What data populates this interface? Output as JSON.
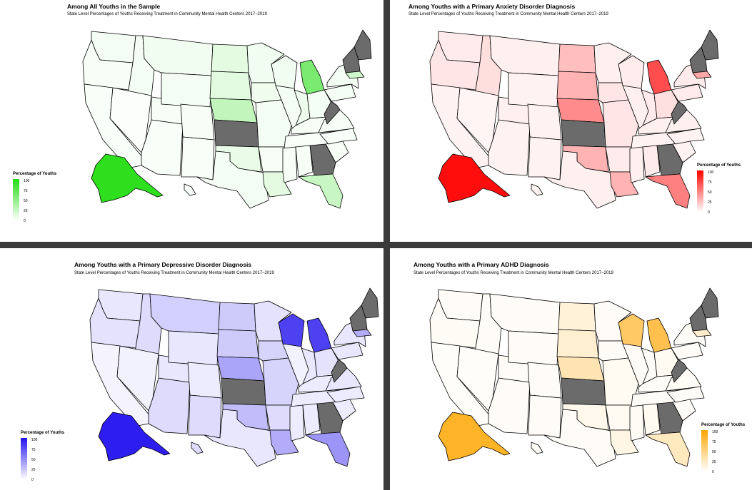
{
  "subtitle": "State Level Percentages of Youths Receiving Treatment in Community Mental Health Centers 2017–2019",
  "legend_title": "Percentage of Youths",
  "legend_ticks": [
    "100",
    "75",
    "50",
    "25",
    "0"
  ],
  "no_data_color": "#6b6b6b",
  "panels": [
    {
      "title": "Among All Youths in the Sample",
      "color": "#22dd11"
    },
    {
      "title": "Among Youths with a Primary Anxiety Disorder Diagnosis",
      "color": "#ff0000"
    },
    {
      "title": "Among Youths with a Primary Depressive Disorder Diagnosis",
      "color": "#2211ee"
    },
    {
      "title": "Among Youths with a Primary ADHD Diagnosis",
      "color": "#ffa500"
    }
  ],
  "chart_data": [
    {
      "type": "map",
      "title": "Among All Youths in the Sample",
      "legend_title": "Percentage of Youths",
      "scale": [
        0,
        100
      ],
      "regions": [
        "WA",
        "OR",
        "CA",
        "ID",
        "NV",
        "AZ",
        "UT",
        "MT",
        "WY",
        "CO",
        "NM",
        "ND",
        "SD",
        "NE",
        "KS",
        "OK",
        "TX",
        "MN",
        "IA",
        "MO",
        "AR",
        "LA",
        "WI",
        "IL",
        "MI",
        "IN",
        "OH",
        "KY",
        "TN",
        "MS",
        "AL",
        "GA",
        "FL",
        "SC",
        "NC",
        "VA",
        "WV",
        "PA",
        "NY",
        "ME",
        "NH_VT",
        "MA",
        "AK",
        "HI"
      ],
      "values": [
        5,
        4,
        3,
        5,
        2,
        3,
        4,
        6,
        5,
        4,
        3,
        12,
        13,
        28,
        null,
        10,
        5,
        6,
        7,
        5,
        4,
        12,
        6,
        5,
        60,
        8,
        5,
        4,
        3,
        4,
        4,
        null,
        25,
        4,
        3,
        4,
        null,
        5,
        5,
        null,
        null,
        22,
        95,
        3
      ]
    },
    {
      "type": "map",
      "title": "Among Youths with a Primary Anxiety Disorder Diagnosis",
      "legend_title": "Percentage of Youths",
      "scale": [
        0,
        100
      ],
      "regions": [
        "WA",
        "OR",
        "CA",
        "ID",
        "NV",
        "AZ",
        "UT",
        "MT",
        "WY",
        "CO",
        "NM",
        "ND",
        "SD",
        "NE",
        "KS",
        "OK",
        "TX",
        "MN",
        "IA",
        "MO",
        "AR",
        "LA",
        "WI",
        "IL",
        "MI",
        "IN",
        "OH",
        "KY",
        "TN",
        "MS",
        "AL",
        "GA",
        "FL",
        "SC",
        "NC",
        "VA",
        "WV",
        "PA",
        "NY",
        "ME",
        "NH_VT",
        "MA",
        "AK",
        "HI"
      ],
      "values": [
        8,
        10,
        5,
        13,
        4,
        5,
        6,
        6,
        5,
        5,
        5,
        25,
        30,
        45,
        null,
        30,
        6,
        6,
        10,
        10,
        8,
        30,
        7,
        6,
        70,
        8,
        12,
        6,
        5,
        6,
        8,
        null,
        50,
        5,
        5,
        6,
        null,
        8,
        8,
        null,
        null,
        35,
        95,
        5
      ]
    },
    {
      "type": "map",
      "title": "Among Youths with a Primary Depressive Disorder Diagnosis",
      "legend_title": "Percentage of Youths",
      "scale": [
        0,
        100
      ],
      "regions": [
        "WA",
        "OR",
        "CA",
        "ID",
        "NV",
        "AZ",
        "UT",
        "MT",
        "WY",
        "CO",
        "NM",
        "ND",
        "SD",
        "NE",
        "KS",
        "OK",
        "TX",
        "MN",
        "IA",
        "MO",
        "AR",
        "LA",
        "WI",
        "IL",
        "MI",
        "IN",
        "OH",
        "KY",
        "TN",
        "MS",
        "AL",
        "GA",
        "FL",
        "SC",
        "NC",
        "VA",
        "WV",
        "PA",
        "NY",
        "ME",
        "NH_VT",
        "MA",
        "AK",
        "HI"
      ],
      "values": [
        10,
        12,
        5,
        15,
        6,
        15,
        10,
        20,
        10,
        8,
        15,
        22,
        22,
        38,
        null,
        28,
        10,
        12,
        18,
        18,
        15,
        35,
        80,
        6,
        80,
        10,
        12,
        8,
        8,
        8,
        8,
        null,
        45,
        8,
        8,
        10,
        null,
        10,
        10,
        null,
        null,
        35,
        95,
        15
      ]
    },
    {
      "type": "map",
      "title": "Among Youths with a Primary ADHD Diagnosis",
      "legend_title": "Percentage of Youths",
      "scale": [
        0,
        100
      ],
      "regions": [
        "WA",
        "OR",
        "CA",
        "ID",
        "NV",
        "AZ",
        "UT",
        "MT",
        "WY",
        "CO",
        "NM",
        "ND",
        "SD",
        "NE",
        "KS",
        "OK",
        "TX",
        "MN",
        "IA",
        "MO",
        "AR",
        "LA",
        "WI",
        "IL",
        "MI",
        "IN",
        "OH",
        "KY",
        "TN",
        "MS",
        "AL",
        "GA",
        "FL",
        "SC",
        "NC",
        "VA",
        "WV",
        "PA",
        "NY",
        "ME",
        "NH_VT",
        "MA",
        "AK",
        "HI"
      ],
      "values": [
        3,
        4,
        2,
        3,
        2,
        3,
        3,
        3,
        3,
        3,
        3,
        15,
        18,
        30,
        null,
        8,
        3,
        3,
        4,
        5,
        5,
        10,
        60,
        3,
        70,
        4,
        5,
        3,
        3,
        4,
        5,
        null,
        25,
        3,
        3,
        4,
        null,
        3,
        3,
        null,
        null,
        20,
        85,
        3
      ]
    }
  ]
}
